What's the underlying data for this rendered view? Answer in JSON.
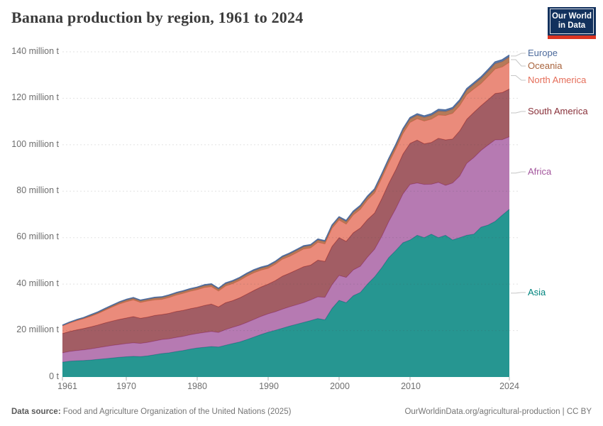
{
  "header": {
    "title": "Banana production by region, 1961 to 2024",
    "logo_lines": [
      "Our World",
      "in Data"
    ]
  },
  "brand": {
    "navy": "#12315d",
    "red": "#dc3522"
  },
  "footer": {
    "source_label": "Data source:",
    "source_text": " Food and Agriculture Organization of the United Nations (2025)",
    "right_text": "OurWorldinData.org/agricultural-production | CC BY"
  },
  "chart_data": {
    "type": "area",
    "stacked": true,
    "title": "Banana production by region, 1961 to 2024",
    "unit": "million tonnes",
    "ylim": [
      0,
      140
    ],
    "grid": true,
    "legend_position": "right",
    "x": [
      1961,
      1962,
      1963,
      1964,
      1965,
      1966,
      1967,
      1968,
      1969,
      1970,
      1971,
      1972,
      1973,
      1974,
      1975,
      1976,
      1977,
      1978,
      1979,
      1980,
      1981,
      1982,
      1983,
      1984,
      1985,
      1986,
      1987,
      1988,
      1989,
      1990,
      1991,
      1992,
      1993,
      1994,
      1995,
      1996,
      1997,
      1998,
      1999,
      2000,
      2001,
      2002,
      2003,
      2004,
      2005,
      2006,
      2007,
      2008,
      2009,
      2010,
      2011,
      2012,
      2013,
      2014,
      2015,
      2016,
      2017,
      2018,
      2019,
      2020,
      2021,
      2022,
      2023,
      2024
    ],
    "x_ticks": [
      1961,
      1970,
      1980,
      1990,
      2000,
      2010,
      2024
    ],
    "x_tick_labels": [
      "1961",
      "1970",
      "1980",
      "1990",
      "2000",
      "2010",
      "2024"
    ],
    "y_ticks": [
      0,
      20,
      40,
      60,
      80,
      100,
      120,
      140
    ],
    "y_tick_labels": [
      "0 t",
      "20 million t",
      "40 million t",
      "60 million t",
      "80 million t",
      "100 million t",
      "120 million t",
      "140 million t"
    ],
    "series": [
      {
        "name": "Asia",
        "color": "#00847e",
        "fill_opacity": 0.85,
        "values": [
          6.4,
          6.8,
          7.0,
          7.1,
          7.3,
          7.6,
          7.9,
          8.2,
          8.5,
          8.7,
          8.9,
          8.8,
          9.1,
          9.6,
          10.1,
          10.4,
          10.9,
          11.4,
          12.0,
          12.5,
          12.8,
          13.1,
          12.9,
          13.7,
          14.4,
          15.1,
          16.1,
          17.2,
          18.3,
          19.3,
          20.1,
          21.0,
          21.9,
          22.7,
          23.5,
          24.3,
          25.2,
          24.6,
          29.5,
          33.0,
          32.0,
          35.0,
          36.4,
          40.0,
          43.1,
          47.0,
          51.4,
          54.5,
          57.8,
          59.0,
          61.0,
          60.0,
          61.5,
          60.0,
          61.0,
          59.0,
          60.0,
          61.0,
          61.5,
          64.5,
          65.4,
          67.0,
          69.7,
          72.2
        ]
      },
      {
        "name": "Africa",
        "color": "#a2559c",
        "fill_opacity": 0.78,
        "values": [
          4.0,
          4.2,
          4.4,
          4.6,
          4.8,
          5.0,
          5.2,
          5.4,
          5.5,
          5.7,
          5.8,
          5.7,
          5.8,
          5.9,
          6.0,
          6.0,
          6.1,
          6.1,
          6.2,
          6.2,
          6.4,
          6.5,
          6.3,
          6.7,
          7.0,
          7.2,
          7.4,
          7.6,
          7.8,
          7.9,
          8.0,
          8.2,
          8.3,
          8.4,
          8.5,
          8.9,
          9.3,
          9.7,
          10.2,
          10.7,
          10.9,
          11.1,
          11.3,
          11.6,
          11.9,
          13.5,
          15.5,
          18.0,
          21.0,
          23.9,
          22.5,
          22.9,
          21.5,
          23.8,
          21.5,
          24.5,
          26.5,
          31.0,
          33.0,
          33.0,
          34.5,
          35.1,
          32.5,
          31.2
        ]
      },
      {
        "name": "South America",
        "color": "#883039",
        "fill_opacity": 0.78,
        "values": [
          8.3,
          8.6,
          8.9,
          9.2,
          9.5,
          9.8,
          10.2,
          10.5,
          10.8,
          11.0,
          11.3,
          10.8,
          10.9,
          11.0,
          10.8,
          11.0,
          11.2,
          11.2,
          11.2,
          11.3,
          11.6,
          11.8,
          11.0,
          11.6,
          11.5,
          11.8,
          12.2,
          12.5,
          12.7,
          12.8,
          13.4,
          14.2,
          14.5,
          15.0,
          15.5,
          15.0,
          15.8,
          15.5,
          16.5,
          16.3,
          15.5,
          16.0,
          16.5,
          16.2,
          15.6,
          16.2,
          16.5,
          16.8,
          17.2,
          17.7,
          18.5,
          17.5,
          18.0,
          19.0,
          19.6,
          19.0,
          19.5,
          19.0,
          19.5,
          19.3,
          19.5,
          20.0,
          20.3,
          20.6
        ]
      },
      {
        "name": "North America",
        "color": "#e56e5a",
        "fill_opacity": 0.8,
        "values": [
          3.3,
          3.6,
          3.9,
          4.2,
          4.5,
          4.9,
          5.4,
          6.0,
          6.6,
          7.0,
          7.2,
          6.8,
          6.9,
          6.7,
          6.5,
          6.8,
          7.0,
          7.3,
          7.5,
          7.6,
          7.7,
          7.5,
          6.8,
          7.2,
          7.3,
          7.5,
          7.7,
          7.6,
          7.2,
          6.8,
          7.0,
          7.3,
          7.2,
          7.4,
          7.6,
          7.4,
          7.7,
          7.5,
          7.8,
          7.6,
          7.4,
          7.7,
          8.0,
          8.4,
          8.6,
          8.8,
          8.7,
          8.9,
          8.8,
          9.0,
          9.2,
          9.8,
          10.0,
          10.0,
          10.5,
          11.0,
          10.8,
          10.6,
          10.0,
          9.5,
          10.0,
          10.5,
          11.0,
          11.5
        ]
      },
      {
        "name": "Oceania",
        "color": "#a8633c",
        "fill_opacity": 0.85,
        "values": [
          0.2,
          0.2,
          0.3,
          0.3,
          0.4,
          0.4,
          0.5,
          0.5,
          0.6,
          0.7,
          0.7,
          0.7,
          0.7,
          0.8,
          0.8,
          0.8,
          0.8,
          0.8,
          0.8,
          0.8,
          0.8,
          0.8,
          0.8,
          0.9,
          0.9,
          0.9,
          0.9,
          0.9,
          0.9,
          0.9,
          0.9,
          0.9,
          1.0,
          1.0,
          1.0,
          1.0,
          1.0,
          1.0,
          1.0,
          1.0,
          1.1,
          1.1,
          1.2,
          1.2,
          1.3,
          1.3,
          1.4,
          1.4,
          1.5,
          1.5,
          1.5,
          1.6,
          1.6,
          1.7,
          1.7,
          1.8,
          1.8,
          1.9,
          2.0,
          2.2,
          2.2,
          2.3,
          2.3,
          2.3
        ]
      },
      {
        "name": "Europe",
        "color": "#4c6a9c",
        "fill_opacity": 0.9,
        "values": [
          0.1,
          0.2,
          0.2,
          0.2,
          0.3,
          0.3,
          0.3,
          0.3,
          0.3,
          0.3,
          0.3,
          0.3,
          0.3,
          0.3,
          0.3,
          0.3,
          0.3,
          0.3,
          0.3,
          0.3,
          0.4,
          0.4,
          0.4,
          0.4,
          0.4,
          0.4,
          0.4,
          0.4,
          0.4,
          0.4,
          0.4,
          0.4,
          0.4,
          0.4,
          0.4,
          0.4,
          0.4,
          0.4,
          0.4,
          0.4,
          0.5,
          0.5,
          0.5,
          0.5,
          0.5,
          0.6,
          0.6,
          0.6,
          0.6,
          0.6,
          0.6,
          0.6,
          0.7,
          0.7,
          0.7,
          0.7,
          0.7,
          0.7,
          0.7,
          0.7,
          0.8,
          0.8,
          0.8,
          0.8
        ]
      }
    ]
  }
}
